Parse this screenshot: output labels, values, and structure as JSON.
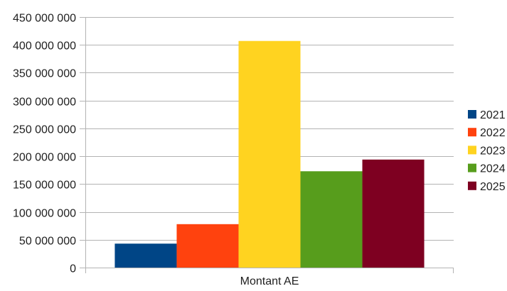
{
  "chart_data": {
    "type": "bar",
    "title": "",
    "xlabel": "",
    "ylabel": "",
    "categories": [
      "Montant AE"
    ],
    "series": [
      {
        "name": "2021",
        "color": "#004586",
        "values": [
          43000000
        ]
      },
      {
        "name": "2022",
        "color": "#ff420e",
        "values": [
          78000000
        ]
      },
      {
        "name": "2023",
        "color": "#ffd320",
        "values": [
          407000000
        ]
      },
      {
        "name": "2024",
        "color": "#579d1c",
        "values": [
          173000000
        ]
      },
      {
        "name": "2025",
        "color": "#7e0021",
        "values": [
          194000000
        ]
      }
    ],
    "ylim": [
      0,
      450000000
    ],
    "yticks": [
      0,
      50000000,
      100000000,
      150000000,
      200000000,
      250000000,
      300000000,
      350000000,
      400000000,
      450000000
    ],
    "ytick_labels": [
      "0",
      "50 000 000",
      "100 000 000",
      "150 000 000",
      "200 000 000",
      "250 000 000",
      "300 000 000",
      "350 000 000",
      "400 000 000",
      "450 000 000"
    ],
    "grid": true,
    "legend_position": "right"
  }
}
